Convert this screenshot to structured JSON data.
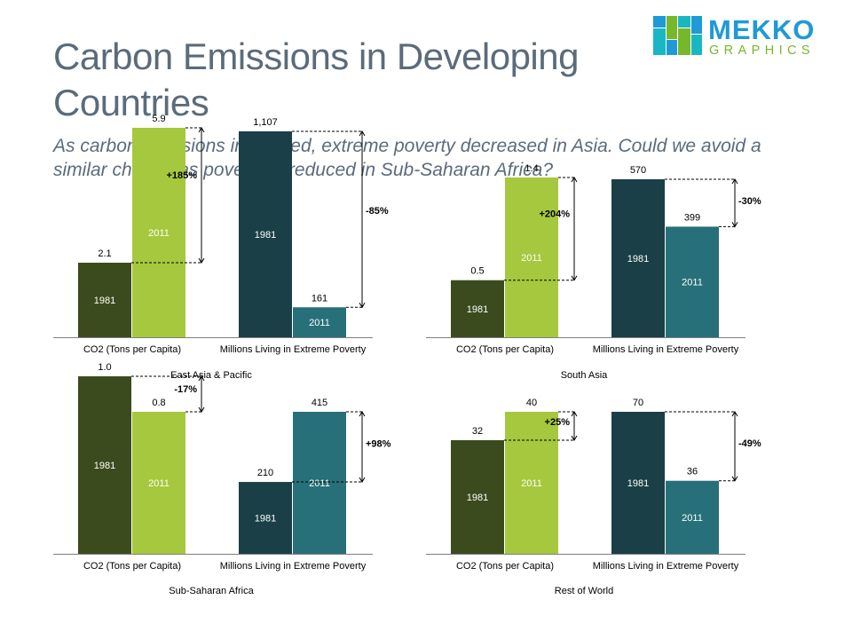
{
  "header": {
    "title": "Carbon Emissions in Developing Countries",
    "subtitle": "As carbon emissions increased, extreme poverty decreased in Asia.  Could we avoid a similar change as poverty is reduced in Sub-Saharan Africa?"
  },
  "logo": {
    "word1": "MEKKO",
    "word2": "GRAPHICS"
  },
  "colors": {
    "co2_1981": "#3c4b1e",
    "co2_2011": "#a6c83e",
    "poverty_1981": "#1a3f47",
    "poverty_2011": "#277079",
    "axis": "#7f7f7f",
    "text": "#000000",
    "logo_blue": "#1f9ad6",
    "logo_green": "#76b82a",
    "logo_teal": "#1ab7c3"
  },
  "chart_data": [
    {
      "type": "bar",
      "title": "East Asia & Pacific",
      "categories": [
        "CO2 (Tons per Capita)",
        "Millions Living in Extreme Poverty"
      ],
      "series": [
        {
          "name": "1981",
          "values": [
            2.1,
            1107
          ]
        },
        {
          "name": "2011",
          "values": [
            5.9,
            161
          ]
        }
      ],
      "labels": {
        "co2": [
          "2.1",
          "5.9"
        ],
        "poverty": [
          "1,107",
          "161"
        ]
      },
      "changes": [
        "+185%",
        "-85%"
      ],
      "xlabel": "East Asia & Pacific"
    },
    {
      "type": "bar",
      "title": "South Asia",
      "categories": [
        "CO2 (Tons per Capita)",
        "Millions Living in Extreme Poverty"
      ],
      "series": [
        {
          "name": "1981",
          "values": [
            0.5,
            570
          ]
        },
        {
          "name": "2011",
          "values": [
            1.4,
            399
          ]
        }
      ],
      "labels": {
        "co2": [
          "0.5",
          "1.4"
        ],
        "poverty": [
          "570",
          "399"
        ]
      },
      "changes": [
        "+204%",
        "-30%"
      ],
      "xlabel": "South Asia"
    },
    {
      "type": "bar",
      "title": "Sub-Saharan Africa",
      "categories": [
        "CO2 (Tons per Capita)",
        "Millions Living in Extreme Poverty"
      ],
      "series": [
        {
          "name": "1981",
          "values": [
            1.0,
            210
          ]
        },
        {
          "name": "2011",
          "values": [
            0.8,
            415
          ]
        }
      ],
      "labels": {
        "co2": [
          "1.0",
          "0.8"
        ],
        "poverty": [
          "210",
          "415"
        ]
      },
      "changes": [
        "-17%",
        "+98%"
      ],
      "xlabel": "Sub-Saharan Africa"
    },
    {
      "type": "bar",
      "title": "Rest of World",
      "categories": [
        "CO2 (Tons per Capita)",
        "Millions Living in Extreme Poverty"
      ],
      "series": [
        {
          "name": "1981",
          "values": [
            32,
            70
          ]
        },
        {
          "name": "2011",
          "values": [
            40,
            36
          ]
        }
      ],
      "labels": {
        "co2": [
          "32",
          "40"
        ],
        "poverty": [
          "70",
          "36"
        ]
      },
      "changes": [
        "+25%",
        "-49%"
      ],
      "xlabel": "Rest of World"
    }
  ]
}
